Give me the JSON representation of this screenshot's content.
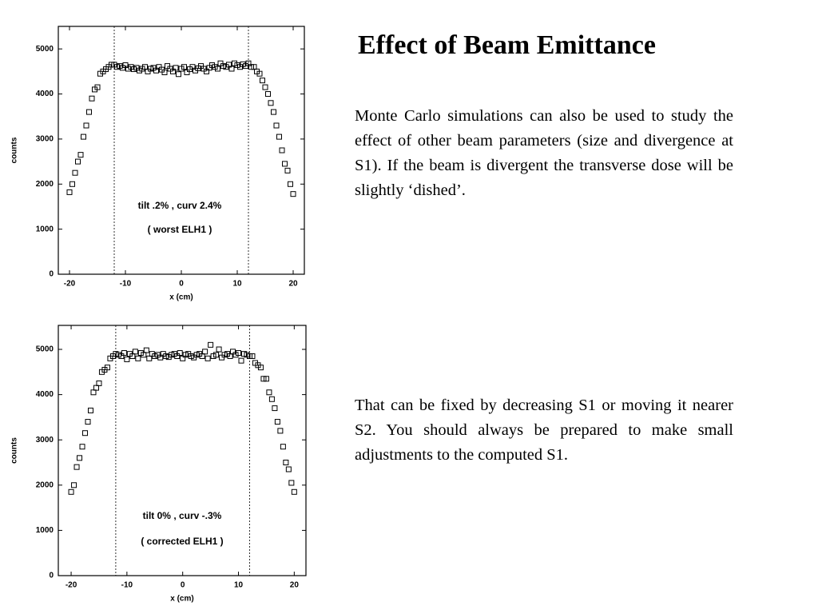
{
  "title": "Effect of  Beam Emittance",
  "paragraphs": [
    "Monte Carlo simulations can also be used to study the effect of other beam parameters (size and divergence at S1). If the beam is divergent the transverse dose will be slightly ‘dished’.",
    "That can be fixed by decreasing S1 or moving it nearer S2. You should always be prepared to make small adjustments to the computed S1."
  ],
  "chart_data": [
    {
      "type": "scatter",
      "xlabel": "x (cm)",
      "ylabel": "counts",
      "annotations": [
        "tilt  .2% , curv  2.4%",
        "( worst  ELH1 )"
      ],
      "xlim": [
        -22,
        22
      ],
      "ylim": [
        0,
        5500
      ],
      "xticks": [
        -20,
        -10,
        0,
        10,
        20
      ],
      "yticks": [
        0,
        1000,
        2000,
        3000,
        4000,
        5000
      ],
      "vlines": [
        -12,
        12
      ],
      "color": "#000000",
      "x": [
        -20,
        -19.5,
        -19,
        -18.5,
        -18,
        -17.5,
        -17,
        -16.5,
        -16,
        -15.5,
        -15,
        -14.5,
        -14,
        -13.5,
        -13,
        -12.5,
        -12,
        -11.5,
        -11,
        -10.5,
        -10,
        -9.5,
        -9,
        -8.5,
        -8,
        -7.5,
        -7,
        -6.5,
        -6,
        -5.5,
        -5,
        -4.5,
        -4,
        -3.5,
        -3,
        -2.5,
        -2,
        -1.5,
        -1,
        -0.5,
        0,
        0.5,
        1,
        1.5,
        2,
        2.5,
        3,
        3.5,
        4,
        4.5,
        5,
        5.5,
        6,
        6.5,
        7,
        7.5,
        8,
        8.5,
        9,
        9.5,
        10,
        10.5,
        11,
        11.5,
        12,
        12.5,
        13,
        13.5,
        14,
        14.5,
        15,
        15.5,
        16,
        16.5,
        17,
        17.5,
        18,
        18.5,
        19,
        19.5,
        20
      ],
      "values": [
        1820,
        2000,
        2250,
        2500,
        2650,
        3050,
        3300,
        3600,
        3900,
        4100,
        4150,
        4450,
        4500,
        4550,
        4600,
        4650,
        4650,
        4600,
        4620,
        4580,
        4640,
        4560,
        4600,
        4550,
        4580,
        4520,
        4560,
        4600,
        4500,
        4560,
        4580,
        4520,
        4600,
        4540,
        4480,
        4620,
        4560,
        4500,
        4580,
        4440,
        4560,
        4600,
        4480,
        4550,
        4600,
        4520,
        4570,
        4620,
        4560,
        4500,
        4580,
        4640,
        4600,
        4560,
        4680,
        4620,
        4600,
        4650,
        4560,
        4680,
        4640,
        4600,
        4660,
        4620,
        4680,
        4600,
        4600,
        4500,
        4450,
        4300,
        4150,
        4000,
        3800,
        3600,
        3300,
        3050,
        2750,
        2450,
        2300,
        2000,
        1780
      ]
    },
    {
      "type": "scatter",
      "xlabel": "x (cm)",
      "ylabel": "counts",
      "annotations": [
        "tilt  0% , curv -.3%",
        "( corrected ELH1 )"
      ],
      "xlim": [
        -22.3,
        22.1
      ],
      "ylim": [
        0,
        5530
      ],
      "xticks": [
        -20,
        -10,
        0,
        10,
        20
      ],
      "yticks": [
        0,
        1000,
        2000,
        3000,
        4000,
        5000
      ],
      "vlines": [
        -12,
        12
      ],
      "color": "#000000",
      "x": [
        -20,
        -19.5,
        -19,
        -18.5,
        -18,
        -17.5,
        -17,
        -16.5,
        -16,
        -15.5,
        -15,
        -14.5,
        -14,
        -13.5,
        -13,
        -12.5,
        -12,
        -11.5,
        -11,
        -10.5,
        -10,
        -9.5,
        -9,
        -8.5,
        -8,
        -7.5,
        -7,
        -6.5,
        -6,
        -5.5,
        -5,
        -4.5,
        -4,
        -3.5,
        -3,
        -2.5,
        -2,
        -1.5,
        -1,
        -0.5,
        0,
        0.5,
        1,
        1.5,
        2,
        2.5,
        3,
        3.5,
        4,
        4.5,
        5,
        5.5,
        6,
        6.5,
        7,
        7.5,
        8,
        8.5,
        9,
        9.5,
        10,
        10.5,
        11,
        11.5,
        12,
        12.5,
        13,
        13.5,
        14,
        14.5,
        15,
        15.5,
        16,
        16.5,
        17,
        17.5,
        18,
        18.5,
        19,
        19.5,
        20
      ],
      "values": [
        1850,
        2000,
        2400,
        2600,
        2850,
        3150,
        3400,
        3650,
        4050,
        4150,
        4250,
        4500,
        4550,
        4600,
        4800,
        4850,
        4900,
        4880,
        4850,
        4920,
        4780,
        4900,
        4850,
        4950,
        4800,
        4920,
        4880,
        4980,
        4800,
        4900,
        4850,
        4880,
        4820,
        4900,
        4850,
        4830,
        4880,
        4900,
        4850,
        4920,
        4800,
        4880,
        4900,
        4850,
        4820,
        4880,
        4900,
        4850,
        4950,
        4800,
        5100,
        4850,
        4880,
        5000,
        4820,
        4880,
        4900,
        4850,
        4950,
        4880,
        4920,
        4750,
        4900,
        4880,
        4850,
        4850,
        4700,
        4650,
        4600,
        4350,
        4350,
        4050,
        3900,
        3700,
        3400,
        3200,
        2850,
        2500,
        2350,
        2050,
        1850
      ]
    }
  ]
}
